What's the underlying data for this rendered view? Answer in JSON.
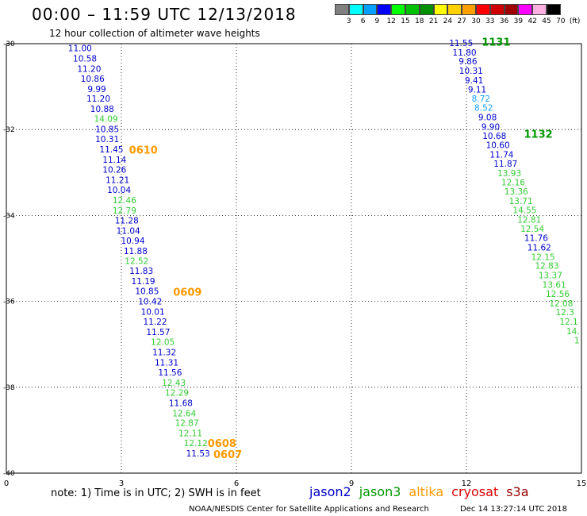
{
  "header": {
    "title": "00:00  –  11:59 UTC 12/13/2018",
    "subtitle": "12 hour collection of altimeter wave heights"
  },
  "color_scale": {
    "labels": [
      "3",
      "6",
      "9",
      "12",
      "15",
      "18",
      "21",
      "24",
      "27",
      "30",
      "33",
      "36",
      "39",
      "42",
      "45",
      "70",
      "(ft)"
    ],
    "colors": [
      "#808080",
      "#00ffff",
      "#00a0ff",
      "#0000ff",
      "#00ff00",
      "#00c000",
      "#009000",
      "#ffff00",
      "#ffd000",
      "#ffa000",
      "#ff0000",
      "#d00000",
      "#a00000",
      "#ff00ff",
      "#ffb0e0",
      "#000000"
    ]
  },
  "footer": {
    "note": "note:  1) Time is in UTC;  2) SWH is in feet",
    "credit": "NOAA/NESDIS Center for Satellite Applications and Research",
    "timestamp": "Dec 14 13:27:14 UTC 2018"
  },
  "legend": [
    {
      "name": "jason2",
      "color": "#0000cc"
    },
    {
      "name": "jason3",
      "color": "#009900"
    },
    {
      "name": "altika",
      "color": "#ff9900"
    },
    {
      "name": "cryosat",
      "color": "#dd0000"
    },
    {
      "name": "s3a",
      "color": "#990000"
    }
  ],
  "chart_data": {
    "type": "scatter",
    "title": "00:00  –  11:59 UTC 12/13/2018",
    "subtitle": "12 hour collection of altimeter wave heights",
    "x_ticks": [
      "0",
      "3",
      "6",
      "9",
      "12",
      "15"
    ],
    "y_ticks": [
      "-30",
      "-32",
      "-34",
      "-36",
      "-38",
      "-40"
    ],
    "xlim": [
      0,
      15
    ],
    "ylim": [
      -40,
      -30
    ],
    "grid": "dotted",
    "series": [
      {
        "name": "jason2",
        "color": "#0000cc",
        "points": [
          {
            "x": 1.92,
            "y": -30.1,
            "label": "11.00",
            "tone": "b"
          },
          {
            "x": 2.05,
            "y": -30.34,
            "label": "10.58",
            "tone": "b"
          },
          {
            "x": 2.16,
            "y": -30.58,
            "label": "11.20",
            "tone": "b"
          },
          {
            "x": 2.25,
            "y": -30.81,
            "label": "10.86",
            "tone": "b"
          },
          {
            "x": 2.36,
            "y": -31.05,
            "label": "9.99",
            "tone": "b"
          },
          {
            "x": 2.4,
            "y": -31.28,
            "label": "11.20",
            "tone": "b"
          },
          {
            "x": 2.5,
            "y": -31.52,
            "label": "10.88",
            "tone": "b"
          },
          {
            "x": 2.6,
            "y": -31.75,
            "label": "14.09",
            "tone": "g"
          },
          {
            "x": 2.63,
            "y": -31.99,
            "label": "10.85",
            "tone": "b"
          },
          {
            "x": 2.63,
            "y": -32.22,
            "label": "10.31",
            "tone": "b"
          },
          {
            "x": 2.74,
            "y": -32.46,
            "label": "11.45",
            "tone": "b"
          },
          {
            "x": 2.82,
            "y": -32.7,
            "label": "11.14",
            "tone": "b"
          },
          {
            "x": 2.82,
            "y": -32.93,
            "label": "10.26",
            "tone": "b"
          },
          {
            "x": 2.9,
            "y": -33.17,
            "label": "11.21",
            "tone": "b"
          },
          {
            "x": 2.94,
            "y": -33.4,
            "label": "10.04",
            "tone": "b"
          },
          {
            "x": 3.08,
            "y": -33.64,
            "label": "12.46",
            "tone": "g"
          },
          {
            "x": 3.08,
            "y": -33.88,
            "label": "12.79",
            "tone": "g"
          },
          {
            "x": 3.14,
            "y": -34.11,
            "label": "11.28",
            "tone": "b"
          },
          {
            "x": 3.18,
            "y": -34.35,
            "label": "11.04",
            "tone": "b"
          },
          {
            "x": 3.3,
            "y": -34.58,
            "label": "10.94",
            "tone": "b"
          },
          {
            "x": 3.37,
            "y": -34.82,
            "label": "11.88",
            "tone": "b"
          },
          {
            "x": 3.4,
            "y": -35.06,
            "label": "12.52",
            "tone": "g"
          },
          {
            "x": 3.52,
            "y": -35.29,
            "label": "11.83",
            "tone": "b"
          },
          {
            "x": 3.57,
            "y": -35.53,
            "label": "11.19",
            "tone": "b"
          },
          {
            "x": 3.67,
            "y": -35.76,
            "label": "10.85",
            "tone": "b"
          },
          {
            "x": 3.75,
            "y": -36.0,
            "label": "10.42",
            "tone": "b"
          },
          {
            "x": 3.82,
            "y": -36.24,
            "label": "10.01",
            "tone": "b"
          },
          {
            "x": 3.88,
            "y": -36.47,
            "label": "11.22",
            "tone": "b"
          },
          {
            "x": 3.96,
            "y": -36.71,
            "label": "11.57",
            "tone": "b"
          },
          {
            "x": 4.08,
            "y": -36.94,
            "label": "12.05",
            "tone": "g"
          },
          {
            "x": 4.12,
            "y": -37.18,
            "label": "11.32",
            "tone": "b"
          },
          {
            "x": 4.18,
            "y": -37.42,
            "label": "11.31",
            "tone": "b"
          },
          {
            "x": 4.27,
            "y": -37.65,
            "label": "11.56",
            "tone": "b"
          },
          {
            "x": 4.37,
            "y": -37.89,
            "label": "12.43",
            "tone": "g"
          },
          {
            "x": 4.45,
            "y": -38.12,
            "label": "12.29",
            "tone": "g"
          },
          {
            "x": 4.55,
            "y": -38.36,
            "label": "11.68",
            "tone": "b"
          },
          {
            "x": 4.64,
            "y": -38.6,
            "label": "12.64",
            "tone": "g"
          },
          {
            "x": 4.71,
            "y": -38.83,
            "label": "12.87",
            "tone": "g"
          },
          {
            "x": 4.8,
            "y": -39.07,
            "label": "12.11",
            "tone": "g"
          },
          {
            "x": 4.94,
            "y": -39.3,
            "label": "12.12",
            "tone": "g"
          },
          {
            "x": 5.0,
            "y": -39.54,
            "label": "11.53",
            "tone": "b"
          }
        ]
      },
      {
        "name": "jason3",
        "color": "#009900",
        "points": [
          {
            "x": 11.86,
            "y": -29.98,
            "label": "11.55",
            "tone": "b"
          },
          {
            "x": 11.95,
            "y": -30.2,
            "label": "11.80",
            "tone": "b"
          },
          {
            "x": 12.04,
            "y": -30.41,
            "label": "9.86",
            "tone": "b"
          },
          {
            "x": 12.12,
            "y": -30.63,
            "label": "10.31",
            "tone": "b"
          },
          {
            "x": 12.2,
            "y": -30.85,
            "label": "9.41",
            "tone": "b"
          },
          {
            "x": 12.28,
            "y": -31.06,
            "label": "9.11",
            "tone": "b"
          },
          {
            "x": 12.38,
            "y": -31.28,
            "label": "8.72",
            "tone": "c"
          },
          {
            "x": 12.45,
            "y": -31.49,
            "label": "8.52",
            "tone": "c"
          },
          {
            "x": 12.55,
            "y": -31.71,
            "label": "9.08",
            "tone": "b"
          },
          {
            "x": 12.63,
            "y": -31.93,
            "label": "9.90",
            "tone": "b"
          },
          {
            "x": 12.73,
            "y": -32.14,
            "label": "10.68",
            "tone": "b"
          },
          {
            "x": 12.82,
            "y": -32.36,
            "label": "10.60",
            "tone": "b"
          },
          {
            "x": 12.92,
            "y": -32.58,
            "label": "11.74",
            "tone": "b"
          },
          {
            "x": 13.02,
            "y": -32.79,
            "label": "11.87",
            "tone": "b"
          },
          {
            "x": 13.12,
            "y": -33.01,
            "label": "13.93",
            "tone": "g"
          },
          {
            "x": 13.22,
            "y": -33.23,
            "label": "12.16",
            "tone": "g"
          },
          {
            "x": 13.3,
            "y": -33.44,
            "label": "13.36",
            "tone": "g"
          },
          {
            "x": 13.42,
            "y": -33.66,
            "label": "13.71",
            "tone": "g"
          },
          {
            "x": 13.52,
            "y": -33.87,
            "label": "14.55",
            "tone": "g"
          },
          {
            "x": 13.64,
            "y": -34.09,
            "label": "12.81",
            "tone": "g"
          },
          {
            "x": 13.72,
            "y": -34.31,
            "label": "12.54",
            "tone": "g"
          },
          {
            "x": 13.82,
            "y": -34.52,
            "label": "11.76",
            "tone": "b"
          },
          {
            "x": 13.9,
            "y": -34.74,
            "label": "11.62",
            "tone": "b"
          },
          {
            "x": 14.0,
            "y": -34.96,
            "label": "12.15",
            "tone": "g"
          },
          {
            "x": 14.1,
            "y": -35.17,
            "label": "12.83",
            "tone": "g"
          },
          {
            "x": 14.19,
            "y": -35.39,
            "label": "13.37",
            "tone": "g"
          },
          {
            "x": 14.29,
            "y": -35.61,
            "label": "13.61",
            "tone": "g"
          },
          {
            "x": 14.38,
            "y": -35.82,
            "label": "12.56",
            "tone": "g"
          },
          {
            "x": 14.47,
            "y": -36.04,
            "label": "12.08",
            "tone": "g"
          },
          {
            "x": 14.57,
            "y": -36.25,
            "label": "12.3",
            "tone": "g"
          },
          {
            "x": 14.67,
            "y": -36.47,
            "label": "12.1",
            "tone": "g"
          },
          {
            "x": 14.78,
            "y": -36.69,
            "label": "14.",
            "tone": "g"
          },
          {
            "x": 14.88,
            "y": -36.9,
            "label": "1",
            "tone": "g"
          }
        ]
      }
    ],
    "time_labels": [
      {
        "x": 3.2,
        "y": -32.47,
        "label": "0610",
        "color": "#ff9900"
      },
      {
        "x": 4.35,
        "y": -35.78,
        "label": "0609",
        "color": "#ff9900"
      },
      {
        "x": 5.25,
        "y": -39.3,
        "label": "0608",
        "color": "#ff9900"
      },
      {
        "x": 5.4,
        "y": -39.56,
        "label": "0607",
        "color": "#ff9900"
      },
      {
        "x": 12.4,
        "y": -29.95,
        "label": "1131",
        "color": "#009900"
      },
      {
        "x": 13.5,
        "y": -32.1,
        "label": "1132",
        "color": "#009900"
      }
    ]
  }
}
